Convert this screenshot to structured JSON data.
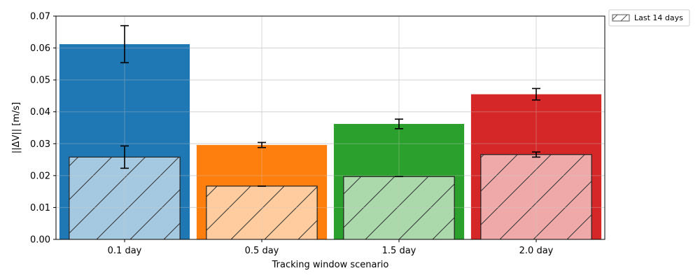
{
  "chart_data": {
    "type": "bar",
    "title": "",
    "xlabel": "Tracking window scenario",
    "ylabel": "||ΔV|| [m/s]",
    "categories": [
      "0.1 day",
      "0.5 day",
      "1.5 day",
      "2.0 day"
    ],
    "ylim": [
      0,
      0.07
    ],
    "yticks": [
      "0.00",
      "0.01",
      "0.02",
      "0.03",
      "0.04",
      "0.05",
      "0.06",
      "0.07"
    ],
    "grid": true,
    "legend": {
      "placement": "outside-top-right",
      "entries": [
        "Last 14 days"
      ]
    },
    "colors": [
      "#1f77b4",
      "#ff7f0e",
      "#2ca02c",
      "#d62728"
    ],
    "series": [
      {
        "style": "solid",
        "values": [
          0.0612,
          0.0296,
          0.0362,
          0.0455
        ],
        "errors": [
          0.0058,
          0.0008,
          0.0015,
          0.0018
        ]
      },
      {
        "name": "Last 14 days",
        "style": "hatched-light",
        "values": [
          0.0258,
          0.0167,
          0.0197,
          0.0266
        ],
        "errors": [
          0.0035,
          0.0,
          0.0,
          0.0008
        ]
      }
    ]
  }
}
